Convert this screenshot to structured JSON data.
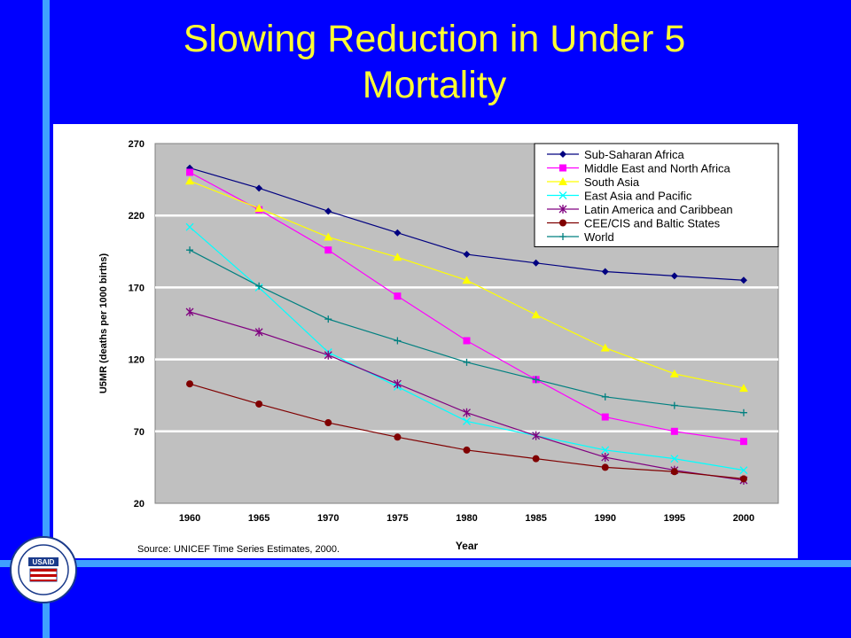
{
  "slide": {
    "title_line1": "Slowing Reduction in Under 5",
    "title_line2": "Mortality",
    "source": "Source: UNICEF Time Series Estimates, 2000.",
    "logo_text": "USAID"
  },
  "chart_data": {
    "type": "line",
    "xlabel": "Year",
    "ylabel": "U5MR (deaths per 1000 births)",
    "ylim": [
      20,
      270
    ],
    "yticks": [
      20,
      70,
      120,
      170,
      220,
      270
    ],
    "categories": [
      "1960",
      "1965",
      "1970",
      "1975",
      "1980",
      "1985",
      "1990",
      "1995",
      "2000"
    ],
    "grid": "horizontal",
    "legend_position": "top-right",
    "series": [
      {
        "name": "Sub-Saharan Africa",
        "color": "#000080",
        "marker": "diamond",
        "values": [
          253,
          239,
          223,
          208,
          193,
          187,
          181,
          178,
          175
        ]
      },
      {
        "name": "Middle East and North Africa",
        "color": "#ff00ff",
        "marker": "square",
        "values": [
          250,
          224,
          196,
          164,
          133,
          106,
          80,
          70,
          63
        ]
      },
      {
        "name": "South Asia",
        "color": "#ffff00",
        "marker": "triangle",
        "values": [
          244,
          225,
          205,
          191,
          175,
          151,
          128,
          110,
          100
        ]
      },
      {
        "name": "East Asia and Pacific",
        "color": "#00ffff",
        "marker": "x",
        "values": [
          212,
          170,
          125,
          101,
          77,
          67,
          57,
          51,
          43
        ]
      },
      {
        "name": "Latin America and Caribbean",
        "color": "#800080",
        "marker": "star",
        "values": [
          153,
          139,
          123,
          103,
          83,
          67,
          52,
          43,
          36
        ]
      },
      {
        "name": "CEE/CIS and Baltic States",
        "color": "#800000",
        "marker": "circle",
        "values": [
          103,
          89,
          76,
          66,
          57,
          51,
          45,
          42,
          37
        ]
      },
      {
        "name": "World",
        "color": "#008080",
        "marker": "plus",
        "values": [
          196,
          171,
          148,
          133,
          118,
          106,
          94,
          88,
          83
        ]
      }
    ]
  }
}
